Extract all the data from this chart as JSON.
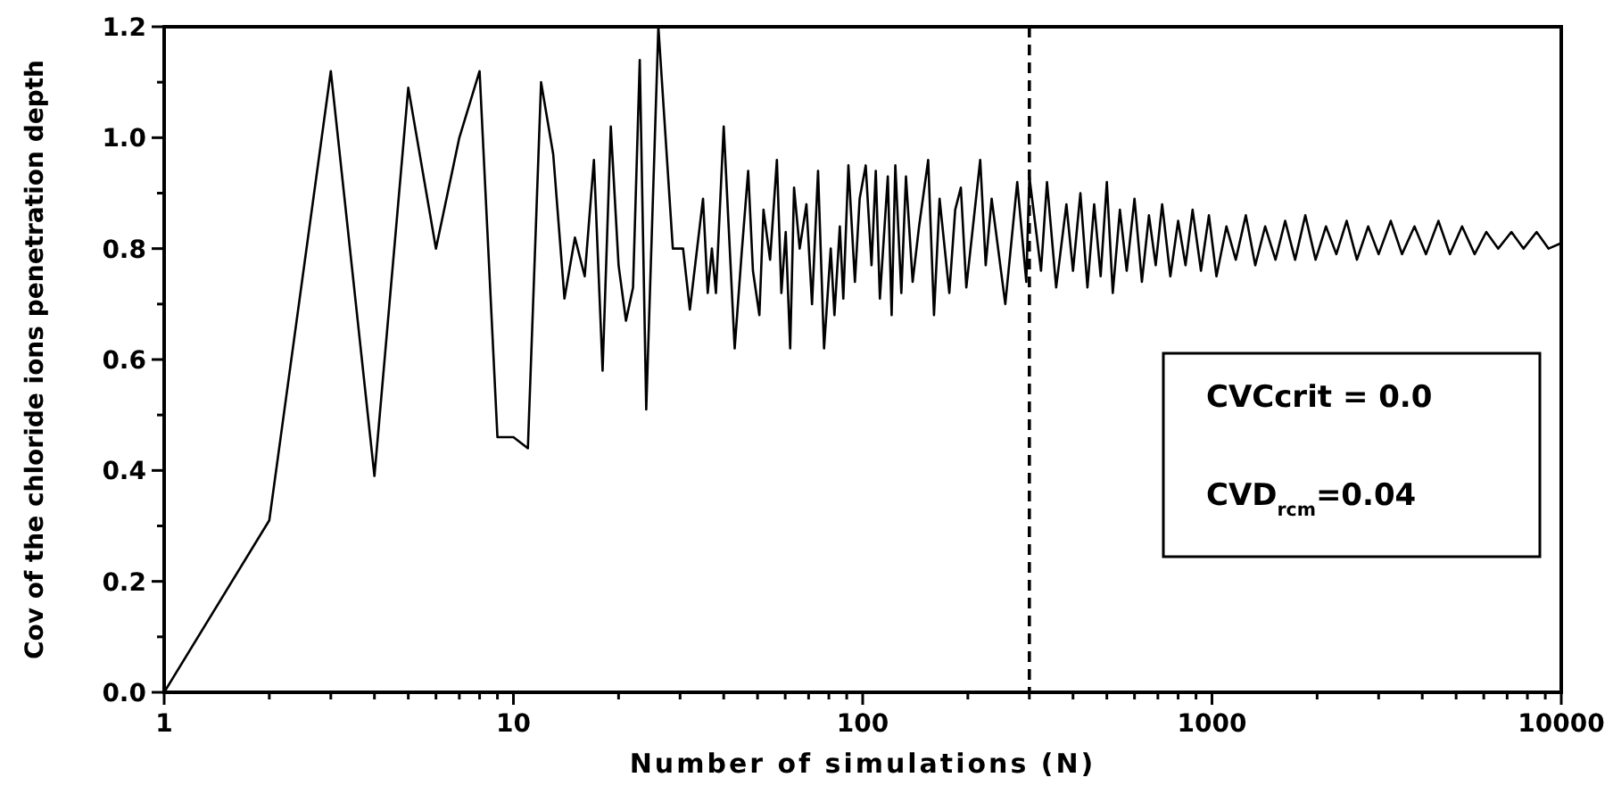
{
  "chart_data": {
    "type": "line",
    "xlabel": "Number of simulations (N)",
    "ylabel": "Cov of the chloride ions penetration depth",
    "log": "x",
    "xlim": [
      1,
      10000
    ],
    "ylim": [
      0,
      1.2
    ],
    "xticks": [
      1,
      {
        "value": 2,
        "label": null
      },
      {
        "value": 3,
        "label": null
      },
      {
        "value": 4,
        "label": null
      },
      {
        "value": 5,
        "label": null
      },
      {
        "value": 6,
        "label": null
      },
      {
        "value": 7,
        "label": null
      },
      {
        "value": 8,
        "label": null
      },
      {
        "value": 9,
        "label": null
      },
      10,
      {
        "value": 20,
        "label": null
      },
      {
        "value": 30,
        "label": null
      },
      {
        "value": 40,
        "label": null
      },
      {
        "value": 50,
        "label": null
      },
      {
        "value": 60,
        "label": null
      },
      {
        "value": 70,
        "label": null
      },
      {
        "value": 80,
        "label": null
      },
      {
        "value": 90,
        "label": null
      },
      100,
      {
        "value": 200,
        "label": null
      },
      {
        "value": 300,
        "label": null
      },
      {
        "value": 400,
        "label": null
      },
      {
        "value": 500,
        "label": null
      },
      {
        "value": 600,
        "label": null
      },
      {
        "value": 700,
        "label": null
      },
      {
        "value": 800,
        "label": null
      },
      {
        "value": 900,
        "label": null
      },
      1000,
      {
        "value": 2000,
        "label": null
      },
      {
        "value": 3000,
        "label": null
      },
      {
        "value": 4000,
        "label": null
      },
      {
        "value": 5000,
        "label": null
      },
      {
        "value": 6000,
        "label": null
      },
      {
        "value": 7000,
        "label": null
      },
      {
        "value": 8000,
        "label": null
      },
      {
        "value": 9000,
        "label": null
      },
      10000
    ],
    "yticks": [
      {
        "value": 0,
        "label": "0.0"
      },
      {
        "value": 0.1,
        "label": null
      },
      0.2,
      {
        "value": 0.3,
        "label": null
      },
      0.4,
      {
        "value": 0.5,
        "label": null
      },
      0.6,
      {
        "value": 0.7,
        "label": null
      },
      0.8,
      {
        "value": 0.9,
        "label": null
      },
      {
        "value": 1,
        "label": "1.0"
      },
      {
        "value": 1.1,
        "label": null
      },
      1.2
    ],
    "x": [
      1,
      2,
      3,
      4,
      5,
      6,
      7,
      8,
      9,
      10,
      11,
      12,
      13,
      14,
      15,
      16,
      17,
      18,
      19,
      20,
      21,
      22,
      23,
      24,
      26,
      28.6,
      30.6,
      32,
      34.9,
      36,
      37,
      38,
      40,
      43,
      45,
      47,
      48.5,
      50.6,
      52,
      54.3,
      56.8,
      58.5,
      60.2,
      62,
      63.6,
      66,
      69,
      71.6,
      74.5,
      77.5,
      81,
      83,
      86,
      88,
      91,
      95,
      98,
      102,
      106,
      109,
      112,
      118,
      121,
      124,
      129,
      133,
      139,
      145,
      154,
      160,
      166,
      177,
      184,
      191,
      198,
      217,
      225,
      234,
      256,
      277,
      294,
      300,
      324,
      337,
      358,
      383,
      400,
      420,
      440,
      460,
      480,
      500,
      520,
      545,
      570,
      600,
      630,
      660,
      690,
      720,
      760,
      800,
      840,
      880,
      930,
      980,
      1030,
      1100,
      1170,
      1250,
      1330,
      1420,
      1520,
      1620,
      1730,
      1850,
      1980,
      2120,
      2270,
      2430,
      2600,
      2800,
      3000,
      3250,
      3500,
      3800,
      4100,
      4450,
      4800,
      5200,
      5650,
      6100,
      6600,
      7200,
      7800,
      8500,
      9200,
      10000
    ],
    "series": [
      {
        "color": "#000000",
        "values": [
          0,
          0.31,
          1.12,
          0.39,
          1.09,
          0.8,
          1.0,
          1.12,
          0.46,
          0.46,
          0.44,
          1.1,
          0.97,
          0.71,
          0.82,
          0.75,
          0.96,
          0.58,
          1.02,
          0.77,
          0.67,
          0.73,
          1.14,
          0.51,
          1.2,
          0.8,
          0.8,
          0.69,
          0.89,
          0.72,
          0.8,
          0.72,
          1.02,
          0.62,
          0.79,
          0.94,
          0.76,
          0.68,
          0.87,
          0.78,
          0.96,
          0.72,
          0.83,
          0.62,
          0.91,
          0.8,
          0.88,
          0.7,
          0.94,
          0.62,
          0.8,
          0.68,
          0.84,
          0.71,
          0.95,
          0.74,
          0.89,
          0.95,
          0.77,
          0.94,
          0.71,
          0.93,
          0.68,
          0.95,
          0.72,
          0.93,
          0.74,
          0.84,
          0.96,
          0.68,
          0.89,
          0.72,
          0.87,
          0.91,
          0.73,
          0.96,
          0.77,
          0.89,
          0.7,
          0.92,
          0.74,
          0.93,
          0.76,
          0.92,
          0.73,
          0.88,
          0.76,
          0.9,
          0.73,
          0.88,
          0.75,
          0.92,
          0.72,
          0.87,
          0.76,
          0.89,
          0.74,
          0.86,
          0.77,
          0.88,
          0.75,
          0.85,
          0.77,
          0.87,
          0.76,
          0.86,
          0.75,
          0.84,
          0.78,
          0.86,
          0.77,
          0.84,
          0.78,
          0.85,
          0.78,
          0.86,
          0.78,
          0.84,
          0.79,
          0.85,
          0.78,
          0.84,
          0.79,
          0.85,
          0.79,
          0.84,
          0.79,
          0.85,
          0.79,
          0.84,
          0.79,
          0.83,
          0.8,
          0.83,
          0.8,
          0.83,
          0.8,
          0.81
        ]
      }
    ],
    "ref_lines": [
      {
        "axis": "x",
        "value": 300,
        "color": "#000000",
        "line_style": "dashed"
      }
    ],
    "annotations": [
      "CVCcrit = 0.0",
      "CVD$_{rcm}$=0.04"
    ]
  }
}
